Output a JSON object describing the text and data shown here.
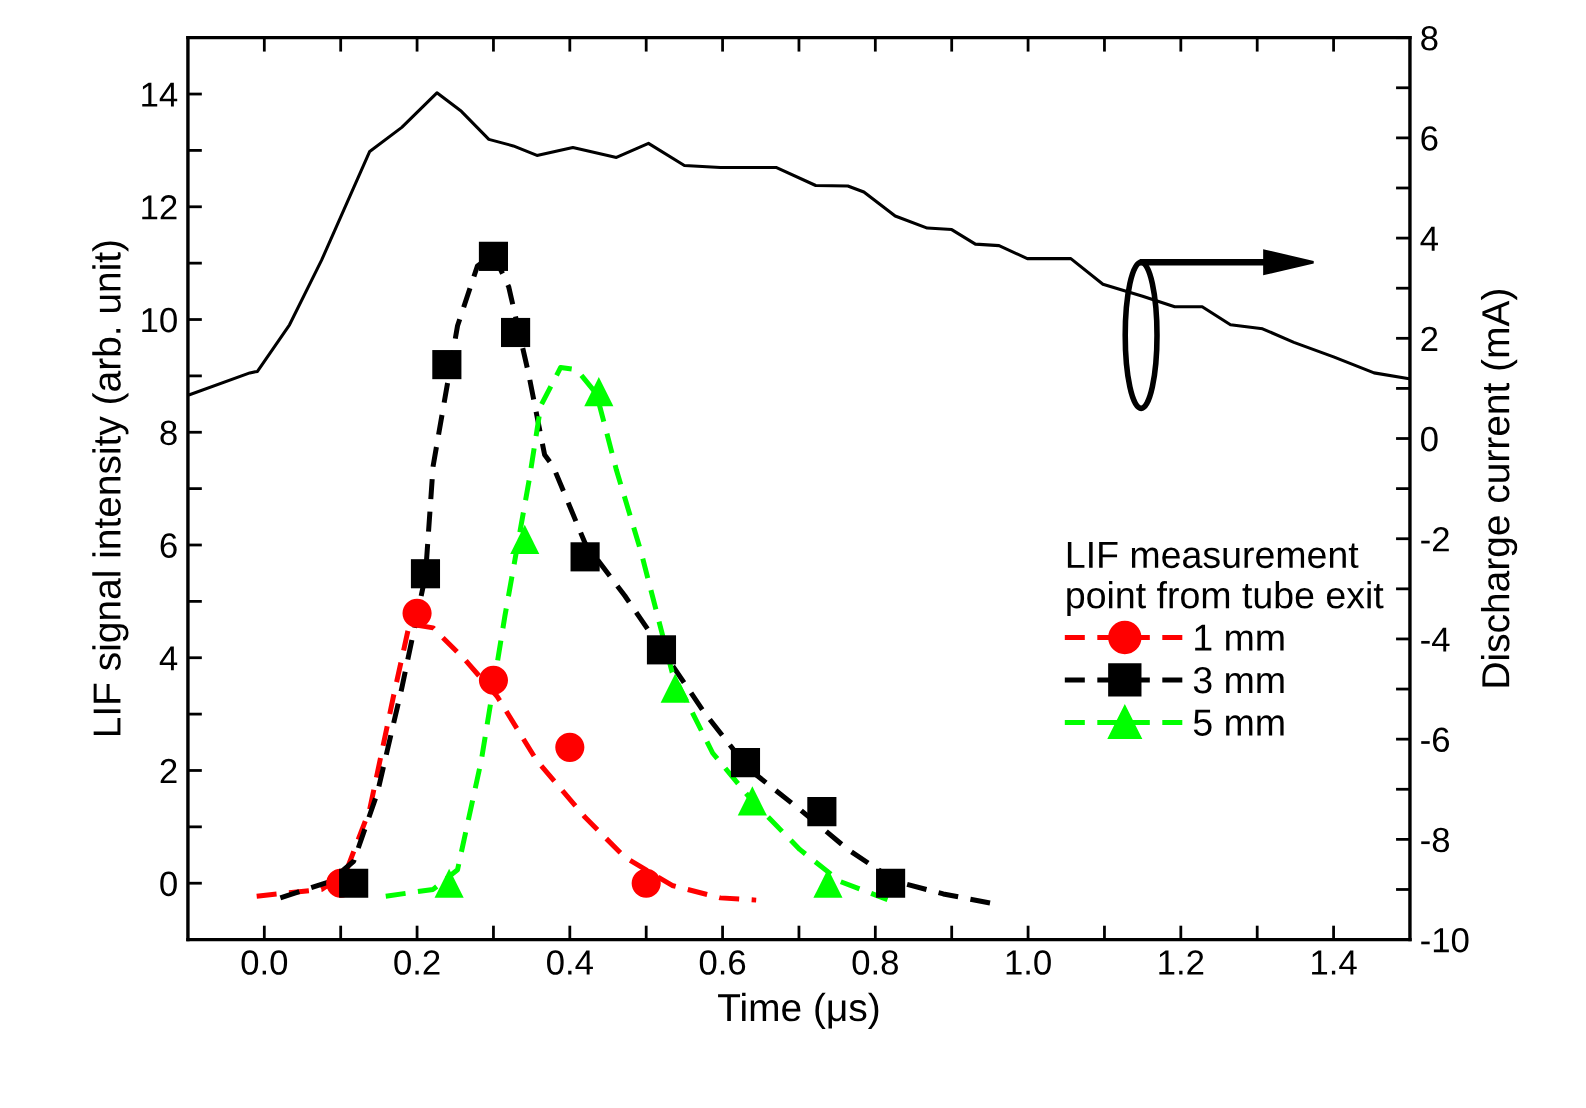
{
  "chart_data": {
    "type": "scatter",
    "xlabel": "Time (μs)",
    "ylabel": "LIF signal intensity (arb. unit)",
    "y2label": "Discharge current (mA)",
    "legend_title": "LIF measurement\npoint from tube exit",
    "legend": "right",
    "grid": false,
    "xlim": [
      -0.1,
      1.5
    ],
    "ylim": [
      -1,
      15
    ],
    "y2lim": [
      -10,
      8
    ],
    "xticks": [
      {
        "value": 0.0,
        "label": "0.0"
      },
      {
        "value": 0.1,
        "label": null
      },
      {
        "value": 0.2,
        "label": "0.2"
      },
      {
        "value": 0.3,
        "label": null
      },
      {
        "value": 0.4,
        "label": "0.4"
      },
      {
        "value": 0.5,
        "label": null
      },
      {
        "value": 0.6,
        "label": "0.6"
      },
      {
        "value": 0.7,
        "label": null
      },
      {
        "value": 0.8,
        "label": "0.8"
      },
      {
        "value": 0.9,
        "label": null
      },
      {
        "value": 1.0,
        "label": "1.0"
      },
      {
        "value": 1.1,
        "label": null
      },
      {
        "value": 1.2,
        "label": "1.2"
      },
      {
        "value": 1.3,
        "label": null
      },
      {
        "value": 1.4,
        "label": "1.4"
      }
    ],
    "yticks": [
      0,
      {
        "value": 1,
        "label": null
      },
      2,
      {
        "value": 3,
        "label": null
      },
      4,
      {
        "value": 5,
        "label": null
      },
      6,
      {
        "value": 7,
        "label": null
      },
      8,
      {
        "value": 9,
        "label": null
      },
      10,
      {
        "value": 11,
        "label": null
      },
      12,
      {
        "value": 13,
        "label": null
      },
      14
    ],
    "y2ticks": [
      -10,
      {
        "value": -9,
        "label": null
      },
      -8,
      {
        "value": -7,
        "label": null
      },
      -6,
      {
        "value": -5,
        "label": null
      },
      -4,
      {
        "value": -3,
        "label": null
      },
      -2,
      {
        "value": -1,
        "label": null
      },
      0,
      {
        "value": 1,
        "label": null
      },
      2,
      {
        "value": 3,
        "label": null
      },
      4,
      {
        "value": 5,
        "label": null
      },
      6,
      {
        "value": 7,
        "label": null
      },
      8
    ],
    "series": [
      {
        "type": "line",
        "axis": "y2",
        "color": "#000000",
        "line_style": "solid",
        "marker": "none",
        "x": [
          -0.097,
          -0.019,
          -0.009,
          0.033,
          0.075,
          0.138,
          0.18,
          0.226,
          0.258,
          0.294,
          0.326,
          0.357,
          0.404,
          0.461,
          0.503,
          0.55,
          0.597,
          0.67,
          0.722,
          0.764,
          0.785,
          0.826,
          0.868,
          0.9,
          0.931,
          0.962,
          0.999,
          1.056,
          1.098,
          1.15,
          1.192,
          1.228,
          1.265,
          1.307,
          1.348,
          1.4,
          1.453,
          1.497
        ],
        "values": [
          0.88,
          1.31,
          1.34,
          2.27,
          3.56,
          5.73,
          6.21,
          6.9,
          6.53,
          5.97,
          5.84,
          5.65,
          5.81,
          5.61,
          5.89,
          5.45,
          5.41,
          5.41,
          5.05,
          5.04,
          4.92,
          4.44,
          4.2,
          4.17,
          3.88,
          3.85,
          3.59,
          3.59,
          3.08,
          2.84,
          2.63,
          2.63,
          2.27,
          2.19,
          1.92,
          1.63,
          1.31,
          1.2
        ]
      },
      {
        "type": "line",
        "color": "#ff0000",
        "line_style": "dashed",
        "marker": "none",
        "x": [
          -0.01,
          0.075,
          0.106,
          0.138,
          0.169,
          0.19,
          0.221,
          0.263,
          0.305,
          0.357,
          0.42,
          0.472,
          0.534,
          0.597,
          0.644
        ],
        "values": [
          -0.23,
          -0.11,
          0.17,
          1.31,
          3.31,
          4.6,
          4.53,
          3.96,
          3.31,
          2.17,
          1.17,
          0.46,
          -0.04,
          -0.26,
          -0.3
        ]
      },
      {
        "type": "line",
        "color": "#000000",
        "line_style": "dashed",
        "marker": "none",
        "x": [
          0.021,
          0.086,
          0.117,
          0.148,
          0.18,
          0.211,
          0.221,
          0.253,
          0.279,
          0.3,
          0.32,
          0.346,
          0.367,
          0.378,
          0.42,
          0.472,
          0.519,
          0.576,
          0.634,
          0.701,
          0.764,
          0.827,
          0.889,
          0.957
        ],
        "values": [
          -0.26,
          0.03,
          0.39,
          1.6,
          3.46,
          5.46,
          7.4,
          9.89,
          10.95,
          11.16,
          10.58,
          9.04,
          7.6,
          7.4,
          6.03,
          5.1,
          4.17,
          3.03,
          2.03,
          1.31,
          0.6,
          0.03,
          -0.19,
          -0.37
        ]
      },
      {
        "type": "line",
        "color": "#00ff00",
        "line_style": "dashed",
        "marker": "none",
        "x": [
          0.159,
          0.221,
          0.253,
          0.284,
          0.315,
          0.347,
          0.362,
          0.388,
          0.409,
          0.435,
          0.461,
          0.493,
          0.534,
          0.587,
          0.639,
          0.701,
          0.754,
          0.816
        ],
        "values": [
          -0.23,
          -0.11,
          0.24,
          2.17,
          4.74,
          7.17,
          8.47,
          9.15,
          9.11,
          8.68,
          7.33,
          5.89,
          3.74,
          2.31,
          1.46,
          0.6,
          0.03,
          -0.29
        ]
      },
      {
        "name": "1 mm",
        "color": "#ff0000",
        "marker": "circle",
        "line_style": "dashed",
        "x": [
          0.1,
          0.2,
          0.3,
          0.4,
          0.5
        ],
        "values": [
          0,
          4.79,
          3.6,
          2.41,
          0
        ]
      },
      {
        "name": "3 mm",
        "color": "#000000",
        "marker": "square",
        "line_style": "dashed",
        "x": [
          0.117,
          0.211,
          0.239,
          0.3,
          0.329,
          0.42,
          0.52,
          0.63,
          0.73,
          0.82
        ],
        "values": [
          0,
          5.49,
          9.2,
          11.12,
          9.77,
          5.79,
          4.14,
          2.14,
          1.27,
          0
        ]
      },
      {
        "name": "5 mm",
        "color": "#00ff00",
        "marker": "triangle",
        "line_style": "dashed",
        "x": [
          0.242,
          0.341,
          0.438,
          0.538,
          0.639,
          0.738
        ],
        "values": [
          0,
          6.1,
          8.72,
          3.46,
          1.46,
          0
        ]
      }
    ]
  }
}
